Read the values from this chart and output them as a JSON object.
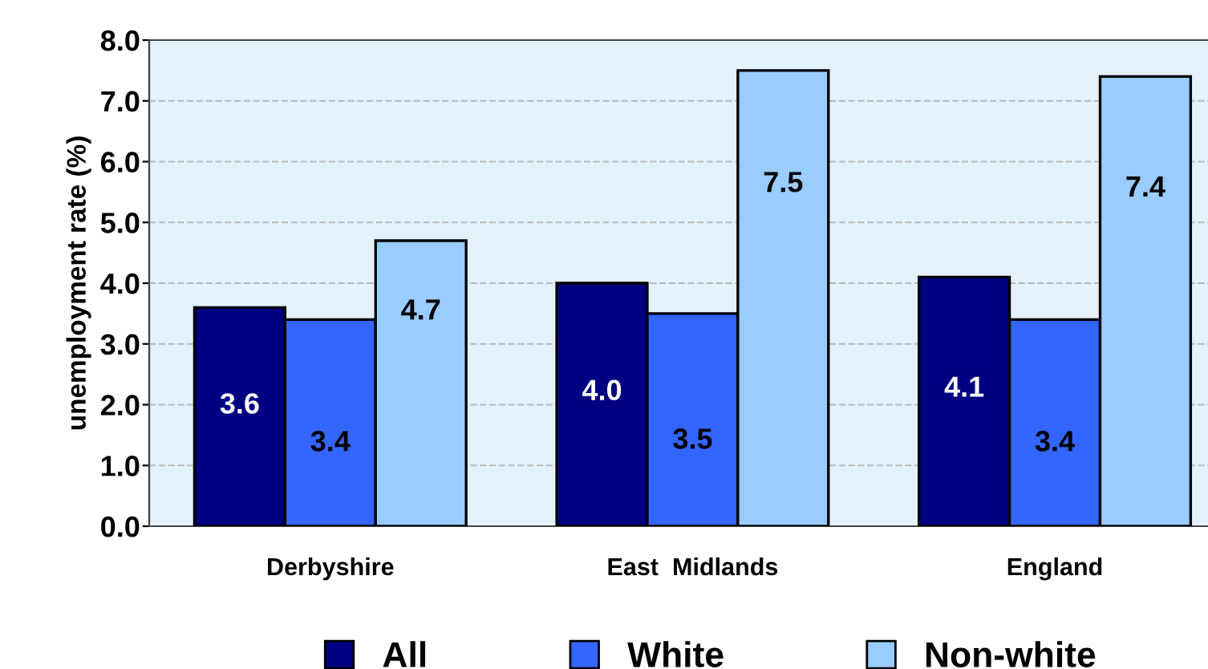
{
  "chart_data": {
    "type": "bar",
    "ylabel": "unemployment rate (%)",
    "categories": [
      "Derbyshire",
      "East  Midlands",
      "England"
    ],
    "series": [
      {
        "name": "All",
        "color": "#000080",
        "values": [
          3.6,
          4.0,
          4.1
        ],
        "value_labels": [
          "3.6",
          "4.0",
          "4.1"
        ]
      },
      {
        "name": "White",
        "color": "#3366ff",
        "values": [
          3.4,
          3.5,
          3.4
        ],
        "value_labels": [
          "3.4",
          "3.5",
          "3.4"
        ]
      },
      {
        "name": "Non-white",
        "color": "#99ccff",
        "values": [
          4.7,
          7.5,
          7.4
        ],
        "value_labels": [
          "4.7",
          "7.5",
          "7.4"
        ]
      }
    ],
    "ylim": [
      0,
      8
    ],
    "yticks": [
      {
        "value": 0,
        "label": "0.0"
      },
      {
        "value": 1,
        "label": "1.0"
      },
      {
        "value": 2,
        "label": "2.0"
      },
      {
        "value": 3,
        "label": "3.0"
      },
      {
        "value": 4,
        "label": "4.0"
      },
      {
        "value": 5,
        "label": "5.0"
      },
      {
        "value": 6,
        "label": "6.0"
      },
      {
        "value": 7,
        "label": "7.0"
      },
      {
        "value": 8,
        "label": "8.0"
      }
    ],
    "grid": "y",
    "legend": "bottom"
  }
}
